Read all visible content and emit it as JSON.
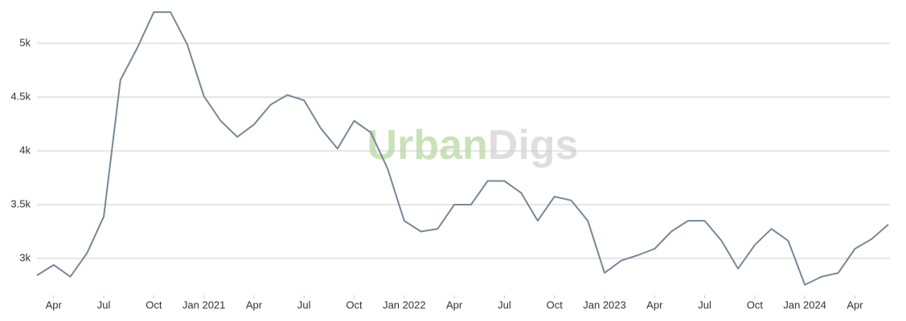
{
  "chart_data": {
    "type": "line",
    "watermark": [
      "Urban",
      "Digs"
    ],
    "x": [
      "2020-03",
      "2020-04",
      "2020-05",
      "2020-06",
      "2020-07",
      "2020-08",
      "2020-09",
      "2020-10",
      "2020-11",
      "2020-12",
      "2021-01",
      "2021-02",
      "2021-03",
      "2021-04",
      "2021-05",
      "2021-06",
      "2021-07",
      "2021-08",
      "2021-09",
      "2021-10",
      "2021-11",
      "2021-12",
      "2022-01",
      "2022-02",
      "2022-03",
      "2022-04",
      "2022-05",
      "2022-06",
      "2022-07",
      "2022-08",
      "2022-09",
      "2022-10",
      "2022-11",
      "2022-12",
      "2023-01",
      "2023-02",
      "2023-03",
      "2023-04",
      "2023-05",
      "2023-06",
      "2023-07",
      "2023-08",
      "2023-09",
      "2023-10",
      "2023-11",
      "2023-12",
      "2024-01",
      "2024-02",
      "2024-03",
      "2024-04",
      "2024-05",
      "2024-06"
    ],
    "series": [
      {
        "color": "#778899",
        "values": [
          2843,
          2940,
          2830,
          3050,
          3390,
          4660,
          4955,
          5290,
          5290,
          4990,
          4510,
          4280,
          4130,
          4245,
          4430,
          4520,
          4470,
          4210,
          4020,
          4280,
          4170,
          3835,
          3350,
          3250,
          3275,
          3500,
          3500,
          3720,
          3720,
          3610,
          3350,
          3575,
          3540,
          3350,
          2865,
          2980,
          3030,
          3090,
          3250,
          3350,
          3350,
          3165,
          2905,
          3125,
          3275,
          3165,
          2755,
          2830,
          2865,
          3090,
          3180,
          3315
        ]
      }
    ],
    "xlim": [
      "2020-03",
      "2024-06"
    ],
    "xticks": [
      {
        "value": "2020-04",
        "label": "Apr"
      },
      {
        "value": "2020-07",
        "label": "Jul"
      },
      {
        "value": "2020-10",
        "label": "Oct"
      },
      {
        "value": "2021-01",
        "label": "Jan 2021"
      },
      {
        "value": "2021-04",
        "label": "Apr"
      },
      {
        "value": "2021-07",
        "label": "Jul"
      },
      {
        "value": "2021-10",
        "label": "Oct"
      },
      {
        "value": "2022-01",
        "label": "Jan 2022"
      },
      {
        "value": "2022-04",
        "label": "Apr"
      },
      {
        "value": "2022-07",
        "label": "Jul"
      },
      {
        "value": "2022-10",
        "label": "Oct"
      },
      {
        "value": "2023-01",
        "label": "Jan 2023"
      },
      {
        "value": "2023-04",
        "label": "Apr"
      },
      {
        "value": "2023-07",
        "label": "Jul"
      },
      {
        "value": "2023-10",
        "label": "Oct"
      },
      {
        "value": "2024-01",
        "label": "Jan 2024"
      },
      {
        "value": "2024-04",
        "label": "Apr"
      }
    ],
    "ylim": [
      2657,
      5403
    ],
    "yticks": [
      {
        "value": 3000,
        "label": "3k"
      },
      {
        "value": 3500,
        "label": "3.5k"
      },
      {
        "value": 4000,
        "label": "4k"
      },
      {
        "value": 4500,
        "label": "4.5k"
      },
      {
        "value": 5000,
        "label": "5k"
      }
    ],
    "grid": true
  }
}
